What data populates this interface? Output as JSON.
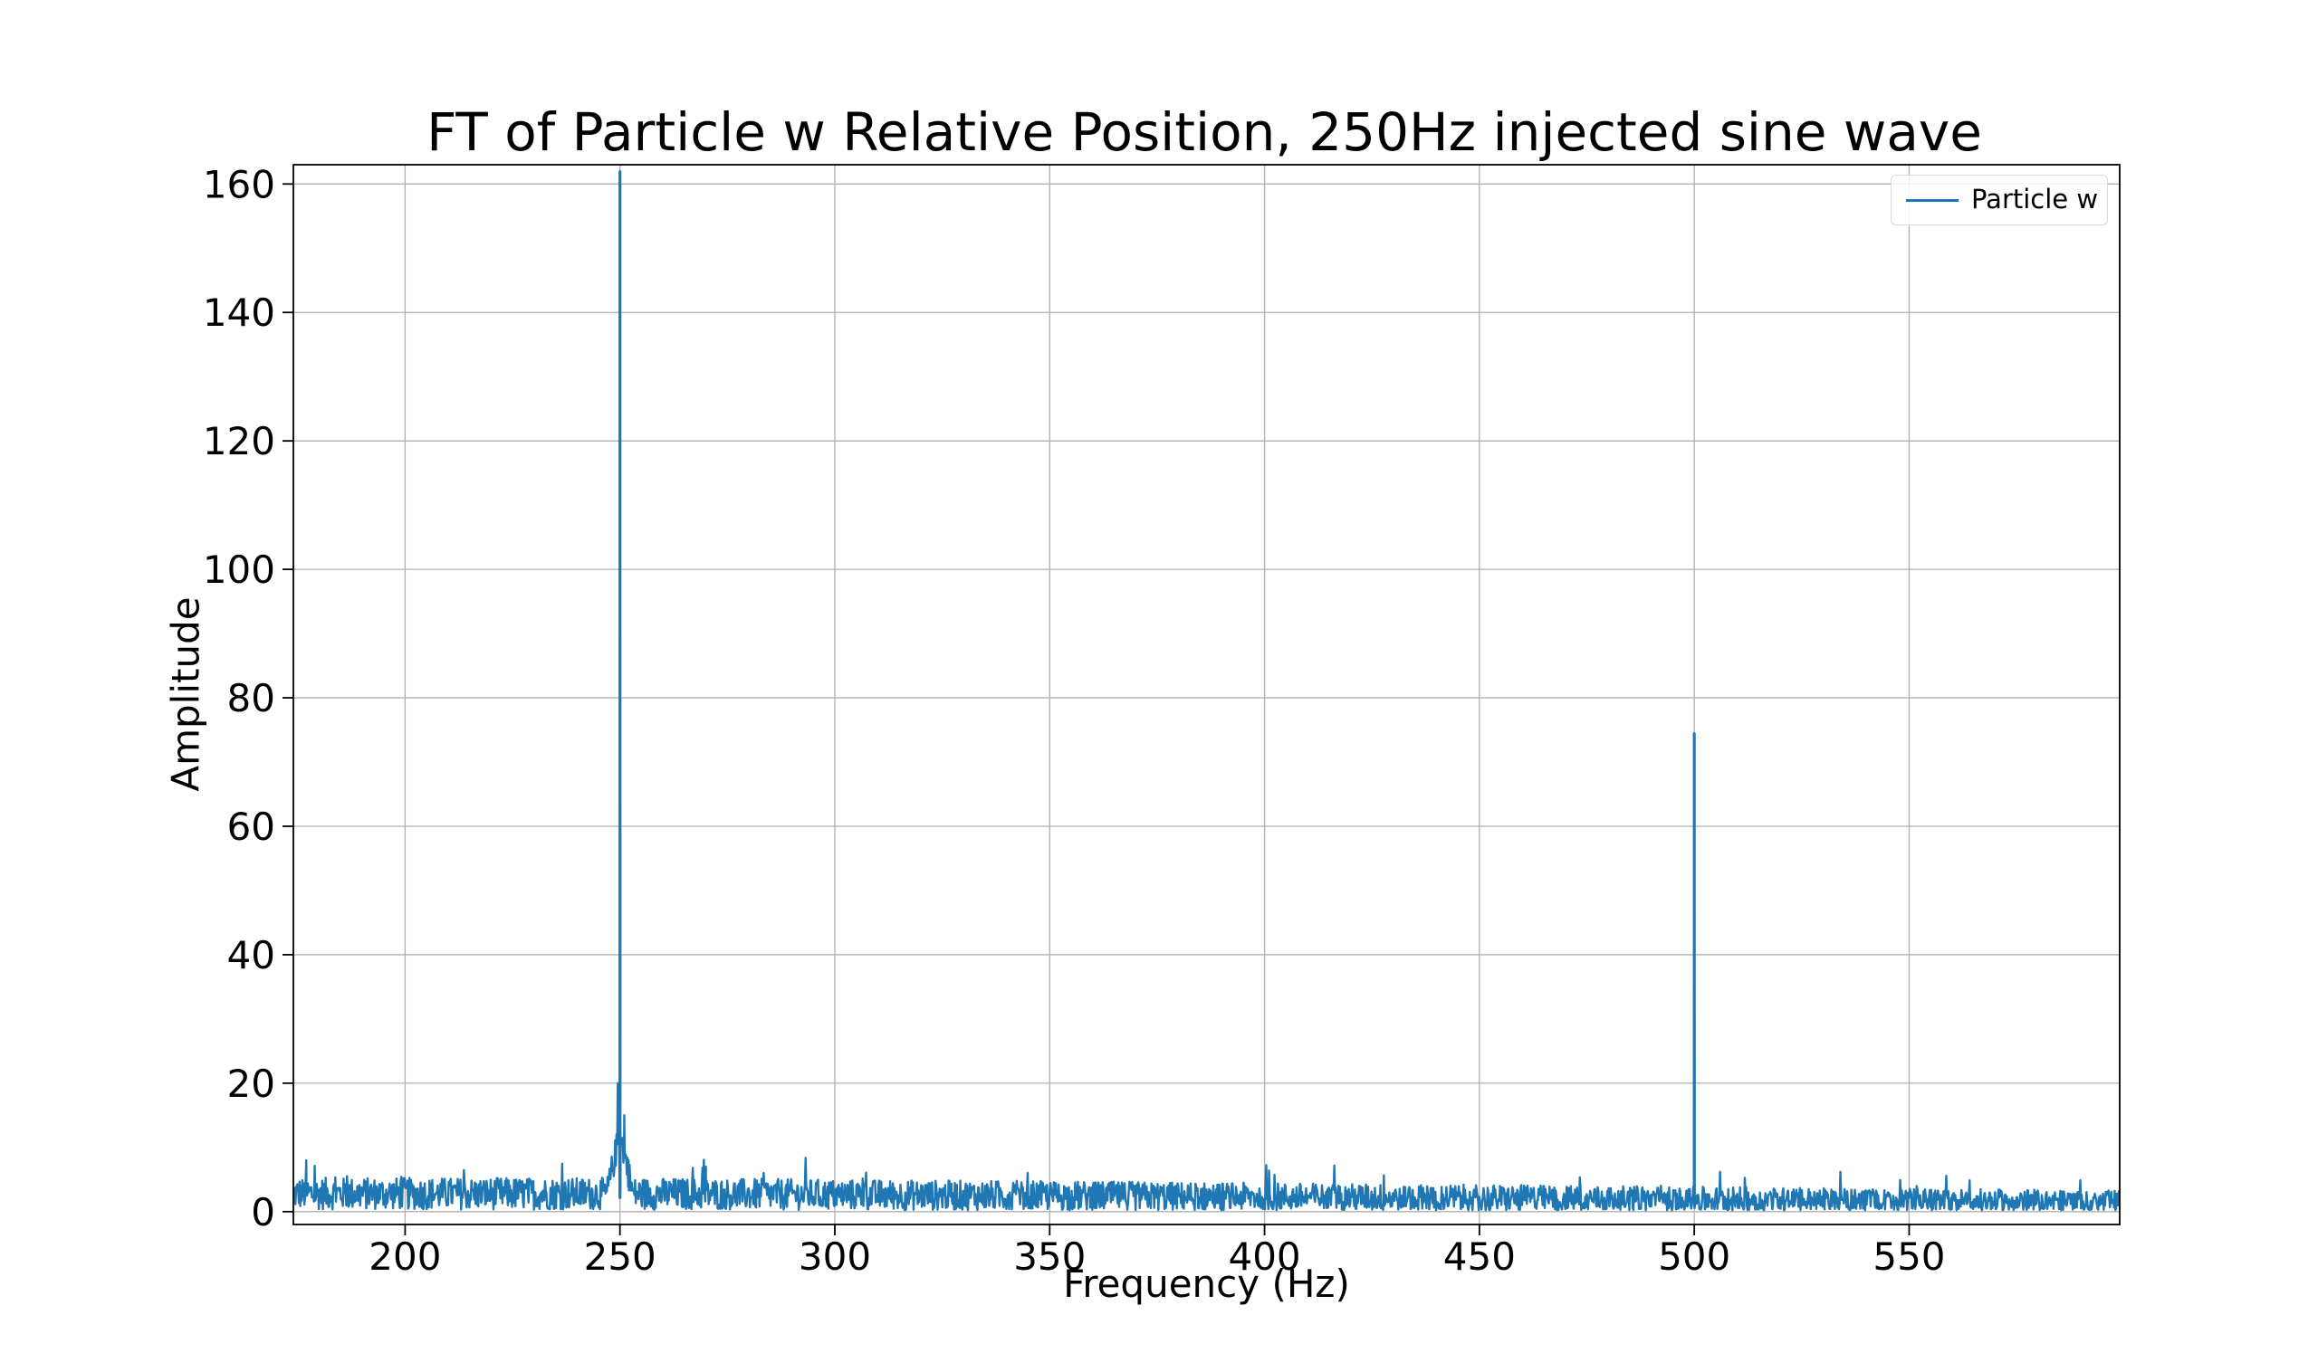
{
  "chart_data": {
    "type": "line",
    "title": "FT of Particle w Relative Position, 250Hz injected sine wave",
    "xlabel": "Frequency (Hz)",
    "ylabel": "Amplitude",
    "xlim": [
      174,
      599
    ],
    "ylim": [
      -2,
      163
    ],
    "x_ticks": [
      200,
      250,
      300,
      350,
      400,
      450,
      500,
      550
    ],
    "x_tick_labels": [
      "200",
      "250",
      "300",
      "350",
      "400",
      "450",
      "500",
      "550"
    ],
    "y_ticks": [
      0,
      20,
      40,
      60,
      80,
      100,
      120,
      140,
      160
    ],
    "y_tick_labels": [
      "0",
      "20",
      "40",
      "60",
      "80",
      "100",
      "120",
      "140",
      "160"
    ],
    "grid": true,
    "legend_position": "top-right",
    "series": [
      {
        "name": "Particle w",
        "color": "#1f77b4",
        "noise_floor": {
          "x": [
            174,
            250,
            400,
            599
          ],
          "baseline": [
            2.8,
            2.8,
            2.3,
            1.5
          ],
          "spread": [
            2.5,
            2.5,
            2.2,
            1.8
          ]
        },
        "peaks": [
          {
            "x": 250,
            "y": 162
          },
          {
            "x": 500,
            "y": 74.5
          }
        ],
        "notable_points": [
          {
            "x": 249.5,
            "y": 20
          },
          {
            "x": 251,
            "y": 15
          },
          {
            "x": 249,
            "y": 10
          },
          {
            "x": 252,
            "y": 8
          },
          {
            "x": 177,
            "y": 8
          },
          {
            "x": 270,
            "y": 7
          }
        ]
      }
    ]
  }
}
